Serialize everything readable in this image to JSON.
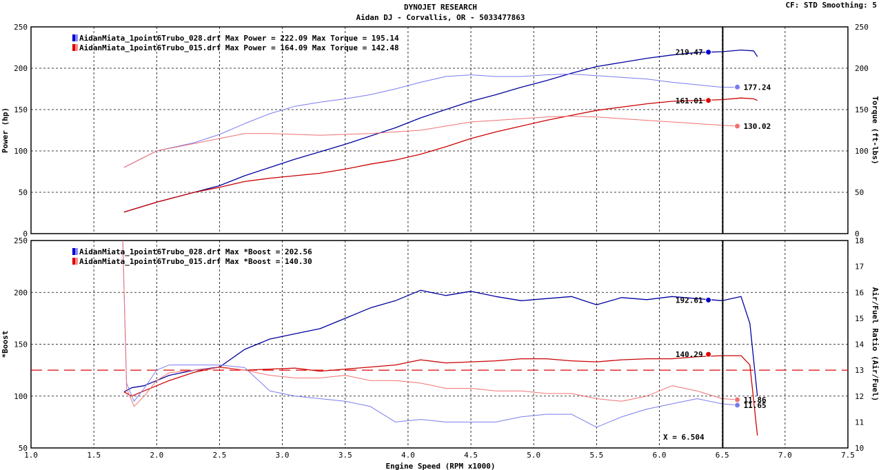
{
  "header": {
    "title": "DYNOJET RESEARCH",
    "subtitle": "Aidan DJ - Corvallis, OR - 5033477863",
    "cf": "CF: STD  Smoothing: 5"
  },
  "xaxis": {
    "label": "Engine Speed (RPM x1000)",
    "ticks": [
      "1.0",
      "1.5",
      "2.0",
      "2.5",
      "3.0",
      "3.5",
      "4.0",
      "4.5",
      "5.0",
      "5.5",
      "6.0",
      "6.5",
      "7.0",
      "7.5"
    ],
    "range": [
      1.0,
      7.5
    ],
    "cursor": 6.504
  },
  "cursor_label": "X = 6.504",
  "chart_data": [
    {
      "type": "line",
      "panel": "top",
      "ylabel": "Power (hp)",
      "y2label": "Torque (ft-lbs)",
      "ylim": [
        0,
        250
      ],
      "y2lim": [
        0,
        250
      ],
      "yticks": [
        "0",
        "50",
        "100",
        "150",
        "200",
        "250"
      ],
      "y2ticks": [
        "0",
        "50",
        "100",
        "150",
        "200",
        "250"
      ],
      "grid": true,
      "legend_position": "top-left",
      "legend": [
        {
          "text": "AidanMiata_1point6Trubo_028.drf Max Power = 222.09    Max Torque = 195.14",
          "color": "#0000cc"
        },
        {
          "text": "AidanMiata_1point6Trubo_015.drf Max Power = 164.09    Max Torque = 142.48",
          "color": "#dd0000"
        }
      ],
      "series": [
        {
          "kind": "power",
          "axis": "left",
          "color": "#00009e",
          "width": 1.3,
          "x": [
            1.74,
            2.0,
            2.3,
            2.5,
            2.7,
            2.9,
            3.1,
            3.3,
            3.5,
            3.7,
            3.9,
            4.1,
            4.3,
            4.5,
            4.7,
            4.9,
            5.1,
            5.3,
            5.5,
            5.7,
            5.9,
            6.1,
            6.3,
            6.5,
            6.65,
            6.75,
            6.78
          ],
          "y": [
            26,
            38,
            50,
            58,
            70,
            80,
            90,
            99,
            108,
            118,
            128,
            140,
            150,
            160,
            168,
            177,
            185,
            194,
            202,
            207,
            212,
            216,
            219,
            220,
            222,
            221,
            214
          ]
        },
        {
          "kind": "power",
          "axis": "left",
          "color": "#cc0000",
          "width": 1.3,
          "x": [
            1.74,
            2.0,
            2.3,
            2.5,
            2.7,
            2.9,
            3.1,
            3.3,
            3.5,
            3.7,
            3.9,
            4.1,
            4.3,
            4.5,
            4.7,
            4.9,
            5.1,
            5.3,
            5.5,
            5.7,
            5.9,
            6.1,
            6.3,
            6.5,
            6.65,
            6.75,
            6.78
          ],
          "y": [
            26,
            38,
            50,
            56,
            63,
            67,
            70,
            73,
            78,
            84,
            89,
            96,
            105,
            115,
            123,
            130,
            137,
            143,
            149,
            153,
            157,
            160,
            161,
            162,
            164,
            163,
            161
          ]
        },
        {
          "kind": "torque",
          "axis": "right",
          "color": "#7a7aee",
          "width": 1.0,
          "x": [
            1.74,
            2.0,
            2.3,
            2.5,
            2.7,
            2.9,
            3.1,
            3.3,
            3.5,
            3.7,
            3.9,
            4.1,
            4.3,
            4.5,
            4.7,
            4.9,
            5.1,
            5.3,
            5.5,
            5.7,
            5.9,
            6.1,
            6.3,
            6.5,
            6.62
          ],
          "y": [
            80,
            100,
            110,
            120,
            133,
            145,
            154,
            159,
            163,
            168,
            175,
            183,
            190,
            192,
            190,
            190,
            192,
            193,
            191,
            189,
            187,
            183,
            180,
            177,
            177
          ]
        },
        {
          "kind": "torque",
          "axis": "right",
          "color": "#f07070",
          "width": 1.0,
          "x": [
            1.74,
            2.0,
            2.3,
            2.5,
            2.7,
            2.9,
            3.1,
            3.3,
            3.5,
            3.7,
            3.9,
            4.1,
            4.3,
            4.5,
            4.7,
            4.9,
            5.1,
            5.3,
            5.5,
            5.7,
            5.9,
            6.1,
            6.3,
            6.5,
            6.62
          ],
          "y": [
            80,
            100,
            109,
            115,
            121,
            121,
            120,
            119,
            120,
            121,
            123,
            125,
            130,
            135,
            137,
            139,
            141,
            142,
            141,
            139,
            137,
            135,
            133,
            131,
            130
          ]
        }
      ],
      "markers": [
        {
          "x": 6.39,
          "y": 219.47,
          "color": "#0000cc",
          "label": "219.47",
          "side": "left",
          "axis": "left"
        },
        {
          "x": 6.62,
          "y": 177.24,
          "color": "#7a7aee",
          "label": "177.24",
          "side": "right",
          "axis": "right"
        },
        {
          "x": 6.39,
          "y": 161.01,
          "color": "#dd0000",
          "label": "161.01",
          "side": "left",
          "axis": "left"
        },
        {
          "x": 6.62,
          "y": 130.02,
          "color": "#f07070",
          "label": "130.02",
          "side": "right",
          "axis": "right"
        }
      ]
    },
    {
      "type": "line",
      "panel": "bottom",
      "ylabel": "*Boost",
      "y2label": "Air/Fuel Ratio (Air/Fuel)",
      "ylim": [
        50,
        250
      ],
      "y2lim": [
        10,
        18
      ],
      "yticks": [
        "50",
        "100",
        "150",
        "200",
        "250"
      ],
      "y2ticks": [
        "10",
        "11",
        "12",
        "13",
        "14",
        "15",
        "16",
        "17",
        "18"
      ],
      "grid": true,
      "legend_position": "top-left",
      "legend": [
        {
          "text": "AidanMiata_1point6Trubo_028.drf Max *Boost = 202.56",
          "color": "#0000cc"
        },
        {
          "text": "AidanMiata_1point6Trubo_015.drf Max *Boost = 140.30",
          "color": "#dd0000"
        }
      ],
      "reference_line": {
        "axis": "right",
        "value": 13.0,
        "color": "#dd0000"
      },
      "series": [
        {
          "kind": "boost",
          "axis": "left",
          "color": "#00009e",
          "width": 1.3,
          "x": [
            1.74,
            1.8,
            1.9,
            2.0,
            2.1,
            2.3,
            2.5,
            2.7,
            2.9,
            3.1,
            3.3,
            3.5,
            3.7,
            3.9,
            4.1,
            4.3,
            4.5,
            4.7,
            4.9,
            5.1,
            5.3,
            5.5,
            5.7,
            5.9,
            6.1,
            6.3,
            6.5,
            6.65,
            6.72,
            6.78
          ],
          "y": [
            104,
            108,
            110,
            115,
            120,
            125,
            128,
            145,
            155,
            160,
            165,
            175,
            185,
            192,
            202,
            197,
            201,
            196,
            192,
            194,
            196,
            188,
            195,
            193,
            196,
            194,
            192,
            196,
            170,
            100
          ]
        },
        {
          "kind": "boost",
          "axis": "left",
          "color": "#cc0000",
          "width": 1.3,
          "x": [
            1.74,
            1.8,
            1.9,
            2.0,
            2.1,
            2.3,
            2.5,
            2.7,
            2.9,
            3.1,
            3.3,
            3.5,
            3.7,
            3.9,
            4.1,
            4.3,
            4.5,
            4.7,
            4.9,
            5.1,
            5.3,
            5.5,
            5.7,
            5.9,
            6.1,
            6.3,
            6.5,
            6.65,
            6.72,
            6.78
          ],
          "y": [
            104,
            100,
            105,
            110,
            115,
            123,
            128,
            125,
            126,
            127,
            124,
            126,
            128,
            130,
            135,
            132,
            133,
            134,
            136,
            136,
            134,
            133,
            135,
            136,
            136,
            138,
            139,
            139,
            130,
            62
          ]
        },
        {
          "kind": "afr",
          "axis": "right",
          "color": "#7a7aee",
          "width": 1.0,
          "x": [
            1.73,
            1.76,
            1.82,
            1.9,
            2.0,
            2.1,
            2.3,
            2.5,
            2.7,
            2.9,
            3.1,
            3.3,
            3.5,
            3.7,
            3.9,
            4.1,
            4.3,
            4.5,
            4.7,
            4.9,
            5.1,
            5.3,
            5.5,
            5.7,
            5.9,
            6.1,
            6.3,
            6.5,
            6.62
          ],
          "y": [
            18.0,
            12.5,
            11.8,
            12.3,
            13.0,
            13.2,
            13.2,
            13.2,
            13.1,
            12.2,
            12.0,
            11.9,
            11.8,
            11.6,
            11.0,
            11.1,
            11.0,
            11.0,
            11.0,
            11.2,
            11.3,
            11.3,
            10.8,
            11.2,
            11.5,
            11.7,
            11.9,
            11.7,
            11.65
          ]
        },
        {
          "kind": "afr",
          "axis": "right",
          "color": "#f07070",
          "width": 1.0,
          "x": [
            1.73,
            1.76,
            1.82,
            1.9,
            2.0,
            2.1,
            2.3,
            2.5,
            2.7,
            2.9,
            3.1,
            3.3,
            3.5,
            3.7,
            3.9,
            4.1,
            4.3,
            4.5,
            4.7,
            4.9,
            5.1,
            5.3,
            5.5,
            5.7,
            5.9,
            6.1,
            6.3,
            6.5,
            6.62
          ],
          "y": [
            18.0,
            12.3,
            11.6,
            12.0,
            12.6,
            12.9,
            13.0,
            13.1,
            13.0,
            12.8,
            12.7,
            12.7,
            12.8,
            12.6,
            12.6,
            12.5,
            12.3,
            12.3,
            12.2,
            12.2,
            12.1,
            12.1,
            11.9,
            11.8,
            12.0,
            12.4,
            12.2,
            11.9,
            11.86
          ]
        }
      ],
      "markers": [
        {
          "x": 6.39,
          "y": 192.61,
          "color": "#0000cc",
          "label": "192.61",
          "side": "left",
          "axis": "left"
        },
        {
          "x": 6.39,
          "y": 140.29,
          "color": "#dd0000",
          "label": "140.29",
          "side": "left",
          "axis": "left"
        },
        {
          "x": 6.62,
          "y": 11.86,
          "color": "#f07070",
          "label": "11.86",
          "side": "right",
          "axis": "right"
        },
        {
          "x": 6.62,
          "y": 11.65,
          "color": "#7a7aee",
          "label": "11.65",
          "side": "right",
          "axis": "right"
        }
      ]
    }
  ]
}
